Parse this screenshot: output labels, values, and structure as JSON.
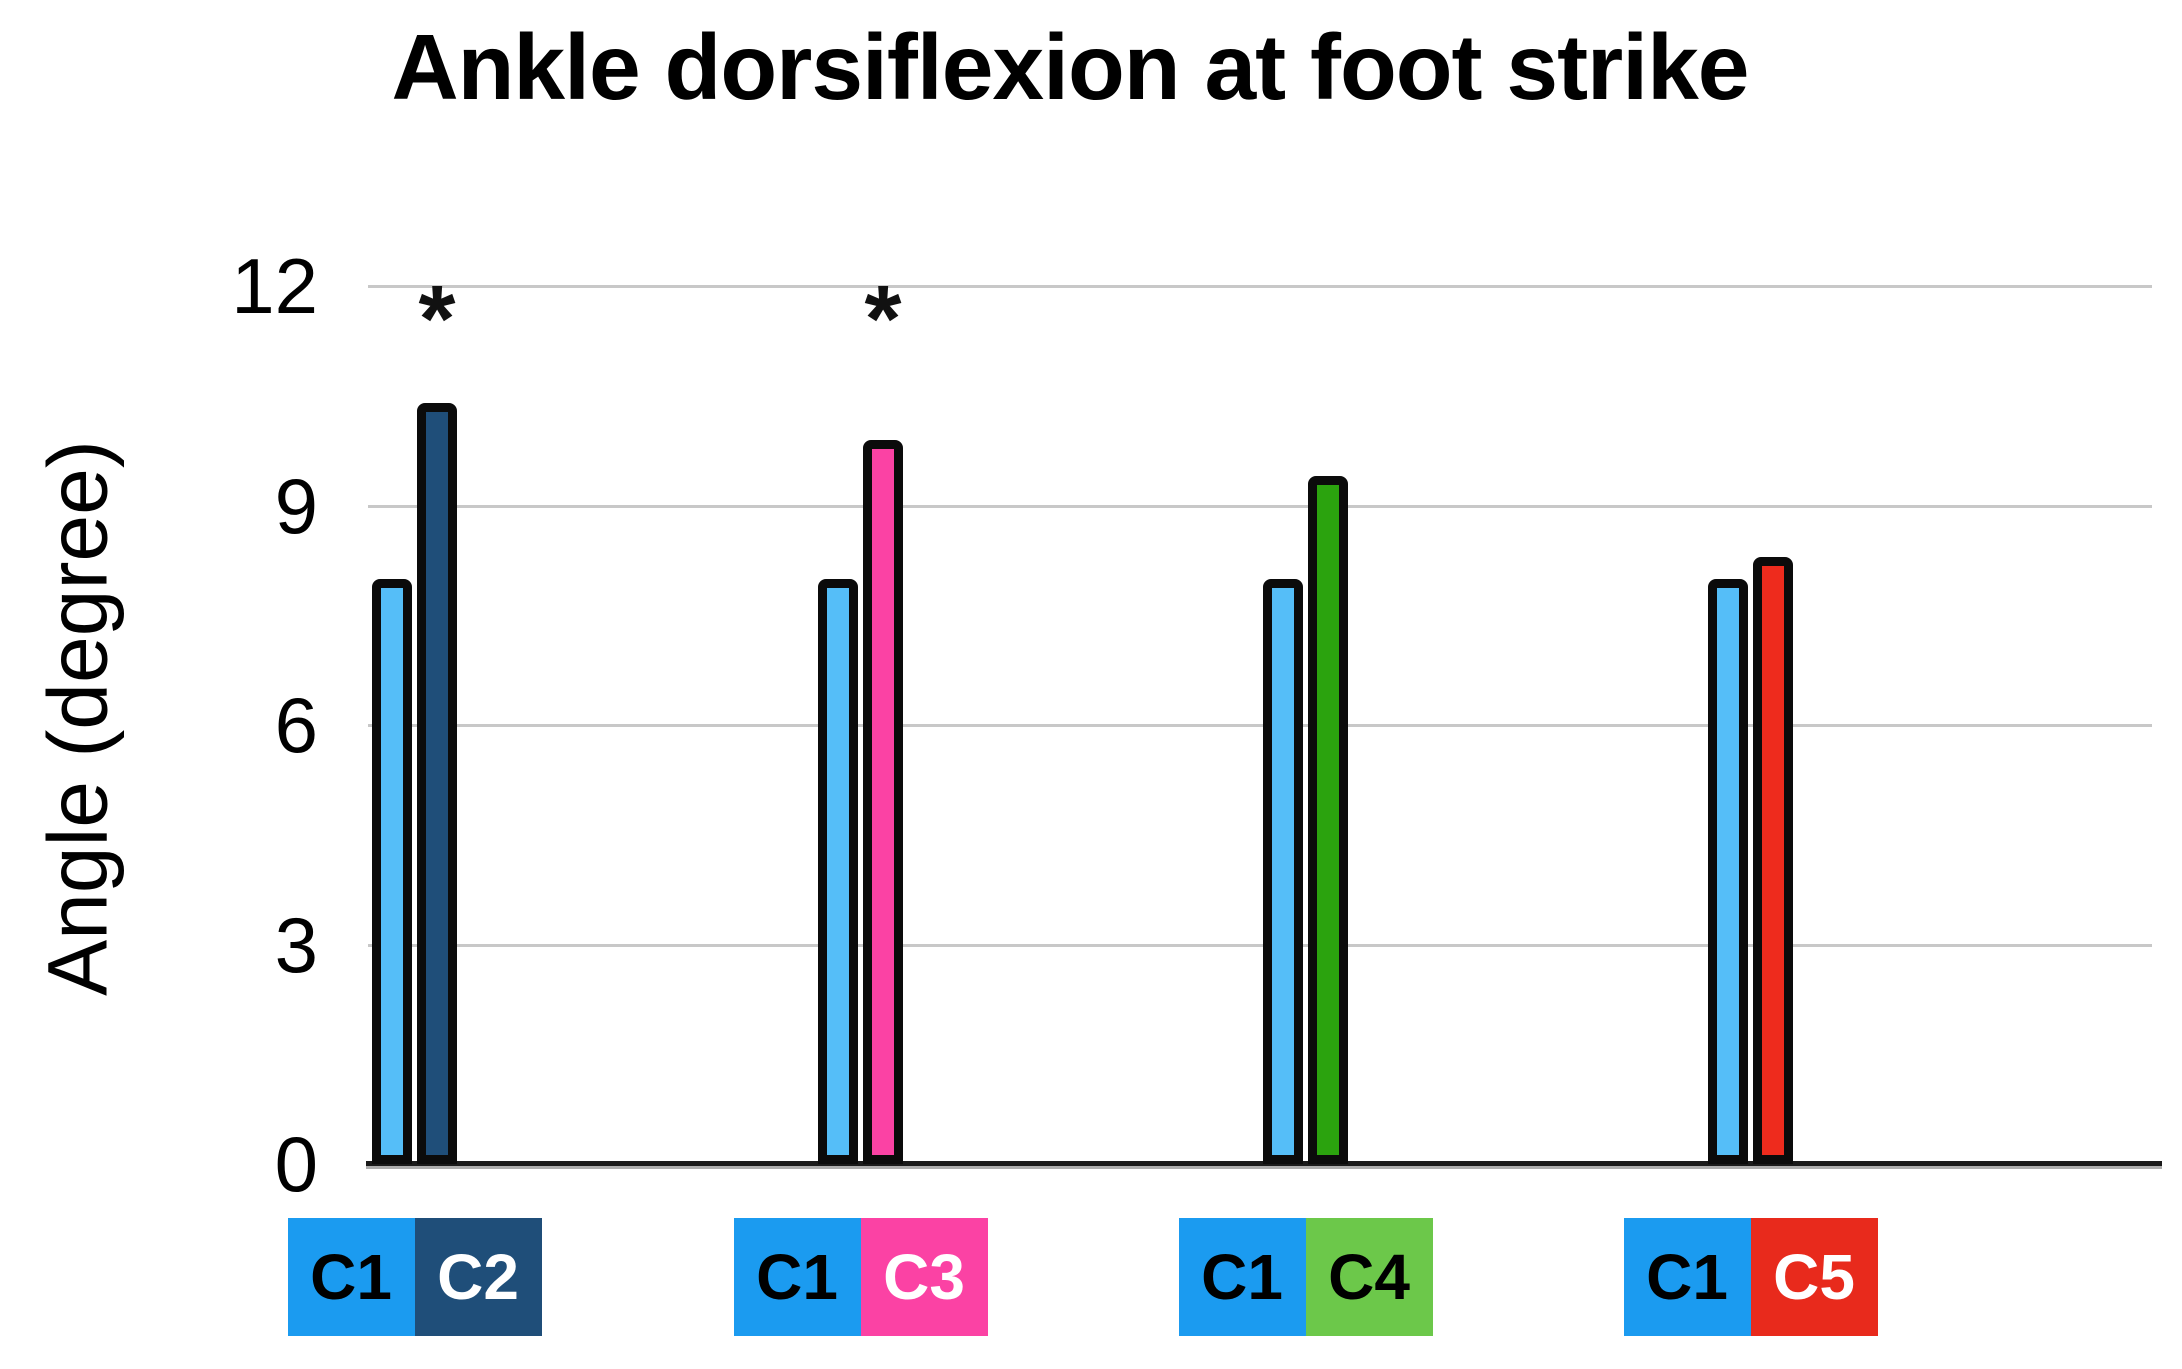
{
  "chart_data": {
    "type": "bar",
    "title": "Ankle dorsiflexion at foot strike",
    "ylabel": "Angle (degree)",
    "yticks": [
      0,
      3,
      6,
      9,
      12
    ],
    "ylim": [
      0,
      12
    ],
    "grid": true,
    "legend_position": "below-axis",
    "groups": [
      {
        "labels": [
          "C1",
          "C2"
        ],
        "values": [
          8.0,
          10.4
        ],
        "significance": "*"
      },
      {
        "labels": [
          "C1",
          "C3"
        ],
        "values": [
          8.0,
          9.9
        ],
        "significance": "*"
      },
      {
        "labels": [
          "C1",
          "C4"
        ],
        "values": [
          8.0,
          9.4
        ],
        "significance": ""
      },
      {
        "labels": [
          "C1",
          "C5"
        ],
        "values": [
          8.0,
          8.3
        ],
        "significance": ""
      }
    ],
    "colors": {
      "c1_bar": "#55BEF8",
      "c1_legend": "#1B9BF0",
      "c1_legend_text": "#000000",
      "partner_bars": [
        "#1F4E79",
        "#FB42A4",
        "#2BA30E",
        "#EE2B1D"
      ],
      "partner_legends": [
        "#1F4E79",
        "#FB42A4",
        "#6CC84A",
        "#E82A1C"
      ],
      "partner_legend_text": [
        "#FFFFFF",
        "#FFFFFF",
        "#000000",
        "#FFFFFF"
      ],
      "bar_border": "#0B0B0B",
      "gridline": "#C8C8C8",
      "axis": "#1A1A1A",
      "title_color": "#000000"
    }
  }
}
